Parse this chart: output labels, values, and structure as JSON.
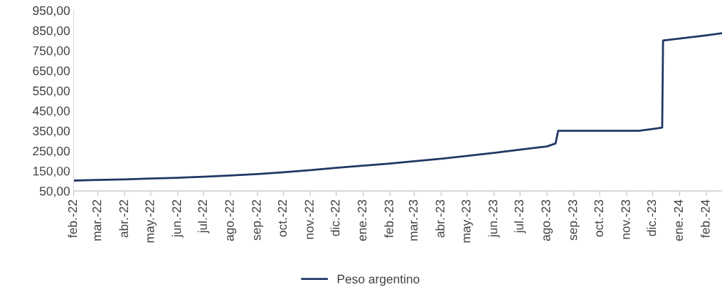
{
  "chart_data": {
    "type": "line",
    "x": [
      "2022-02-01",
      "2022-03-01",
      "2022-04-01",
      "2022-05-01",
      "2022-06-01",
      "2022-07-01",
      "2022-08-01",
      "2022-09-01",
      "2022-10-01",
      "2022-11-01",
      "2022-12-01",
      "2023-01-01",
      "2023-02-01",
      "2023-03-01",
      "2023-04-01",
      "2023-05-01",
      "2023-06-01",
      "2023-07-01",
      "2023-08-01",
      "2023-08-11",
      "2023-08-14",
      "2023-09-01",
      "2023-10-01",
      "2023-11-01",
      "2023-11-15",
      "2023-12-01",
      "2023-12-12",
      "2023-12-13",
      "2024-01-01",
      "2024-02-01",
      "2024-02-19"
    ],
    "series": [
      {
        "name": "Peso argentino",
        "color": "#203864",
        "values": [
          102,
          105,
          108,
          112,
          116,
          121,
          127,
          134,
          143,
          154,
          165,
          176,
          187,
          198,
          211,
          225,
          240,
          256,
          272,
          287,
          350,
          350,
          350,
          350,
          350,
          359,
          366,
          800,
          810,
          826,
          836
        ]
      }
    ],
    "ylim": [
      50,
      950
    ],
    "yticks": [
      {
        "value": 50,
        "label": "50,00"
      },
      {
        "value": 150,
        "label": "150,00"
      },
      {
        "value": 250,
        "label": "250,00"
      },
      {
        "value": 350,
        "label": "350,00"
      },
      {
        "value": 450,
        "label": "450,00"
      },
      {
        "value": 550,
        "label": "550,00"
      },
      {
        "value": 650,
        "label": "650,00"
      },
      {
        "value": 750,
        "label": "750,00"
      },
      {
        "value": 850,
        "label": "850,00"
      },
      {
        "value": 950,
        "label": "950,00"
      }
    ],
    "xlim": [
      "2022-02-01",
      "2024-02-19"
    ],
    "xticks": [
      {
        "value": "2022-02-01",
        "label": "feb.-22"
      },
      {
        "value": "2022-03-01",
        "label": "mar.-22"
      },
      {
        "value": "2022-04-01",
        "label": "abr.-22"
      },
      {
        "value": "2022-05-01",
        "label": "may.-22"
      },
      {
        "value": "2022-06-01",
        "label": "jun.-22"
      },
      {
        "value": "2022-07-01",
        "label": "jul.-22"
      },
      {
        "value": "2022-08-01",
        "label": "ago.-22"
      },
      {
        "value": "2022-09-01",
        "label": "sep.-22"
      },
      {
        "value": "2022-10-01",
        "label": "oct.-22"
      },
      {
        "value": "2022-11-01",
        "label": "nov.-22"
      },
      {
        "value": "2022-12-01",
        "label": "dic.-22"
      },
      {
        "value": "2023-01-01",
        "label": "ene.-23"
      },
      {
        "value": "2023-02-01",
        "label": "feb.-23"
      },
      {
        "value": "2023-03-01",
        "label": "mar.-23"
      },
      {
        "value": "2023-04-01",
        "label": "abr.-23"
      },
      {
        "value": "2023-05-01",
        "label": "may.-23"
      },
      {
        "value": "2023-06-01",
        "label": "jun.-23"
      },
      {
        "value": "2023-07-01",
        "label": "jul.-23"
      },
      {
        "value": "2023-08-01",
        "label": "ago.-23"
      },
      {
        "value": "2023-09-01",
        "label": "sep.-23"
      },
      {
        "value": "2023-10-01",
        "label": "oct.-23"
      },
      {
        "value": "2023-11-01",
        "label": "nov.-23"
      },
      {
        "value": "2023-12-01",
        "label": "dic.-23"
      },
      {
        "value": "2024-01-01",
        "label": "ene.-24"
      },
      {
        "value": "2024-02-01",
        "label": "feb.-24"
      }
    ],
    "grid": false,
    "legend": "bottom",
    "line_style": "solid",
    "marker": "none"
  }
}
